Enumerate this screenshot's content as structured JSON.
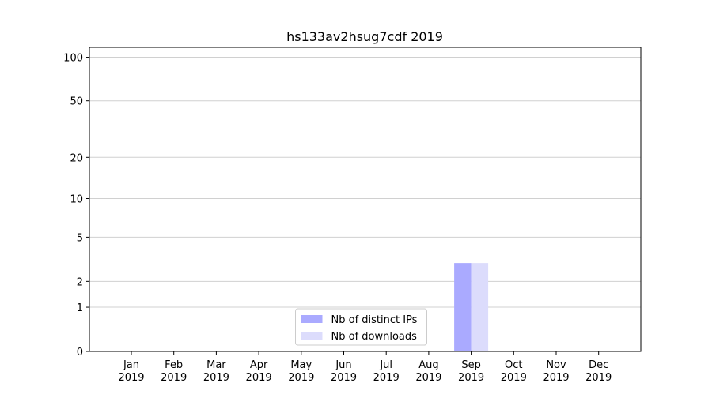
{
  "chart_data": {
    "type": "bar",
    "title": "hs133av2hsug7cdf 2019",
    "categories": [
      "Jan 2019",
      "Feb 2019",
      "Mar 2019",
      "Apr 2019",
      "May 2019",
      "Jun 2019",
      "Jul 2019",
      "Aug 2019",
      "Sep 2019",
      "Oct 2019",
      "Nov 2019",
      "Dec 2019"
    ],
    "series": [
      {
        "name": "Nb of distinct IPs",
        "color": "#aaaaff",
        "values": [
          0,
          0,
          0,
          0,
          0,
          0,
          0,
          0,
          3,
          0,
          0,
          0
        ]
      },
      {
        "name": "Nb of downloads",
        "color": "#dcdcfc",
        "values": [
          0,
          0,
          0,
          0,
          0,
          0,
          0,
          0,
          3,
          0,
          0,
          0
        ]
      }
    ],
    "yscale": "symlog",
    "ylim": [
      0,
      117
    ],
    "yticks": [
      0,
      1,
      2,
      5,
      10,
      20,
      50,
      100
    ],
    "grid": true,
    "legend": "lower center"
  }
}
